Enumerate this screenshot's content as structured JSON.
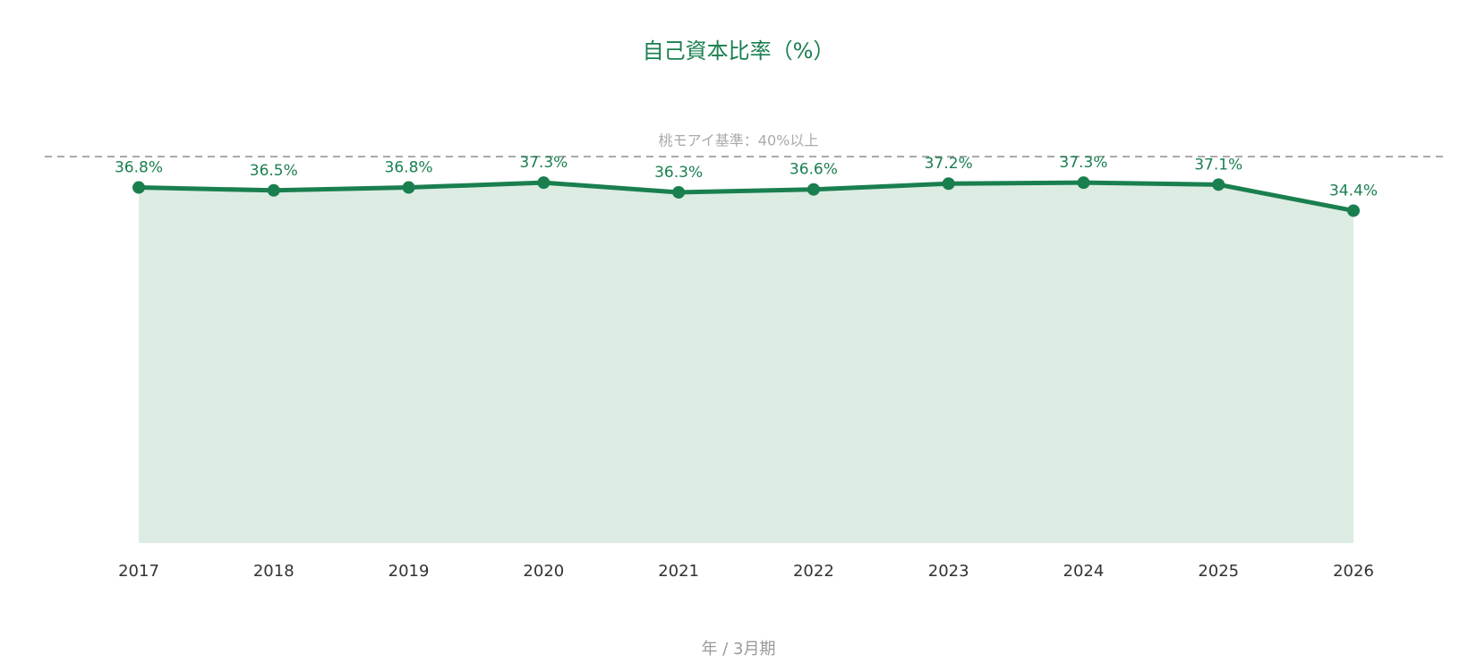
{
  "chart_data": {
    "type": "area-line",
    "title": "自己資本比率（%）",
    "x_label": "年 / 3月期",
    "categories": [
      "2017",
      "2018",
      "2019",
      "2020",
      "2021",
      "2022",
      "2023",
      "2024",
      "2025",
      "2026"
    ],
    "values": [
      36.8,
      36.5,
      36.8,
      37.3,
      36.3,
      36.6,
      37.2,
      37.3,
      37.1,
      34.4
    ],
    "value_labels": [
      "36.8%",
      "36.5%",
      "36.8%",
      "37.3%",
      "36.3%",
      "36.6%",
      "37.2%",
      "37.3%",
      "37.1%",
      "34.4%"
    ],
    "color": "#1a7f4f",
    "area_color": "#dcece3",
    "ylim": [
      0,
      45
    ],
    "reference_line": {
      "value": 40,
      "label": "桃モアイ基準：40%以上",
      "color": "#aaaaaa"
    }
  }
}
